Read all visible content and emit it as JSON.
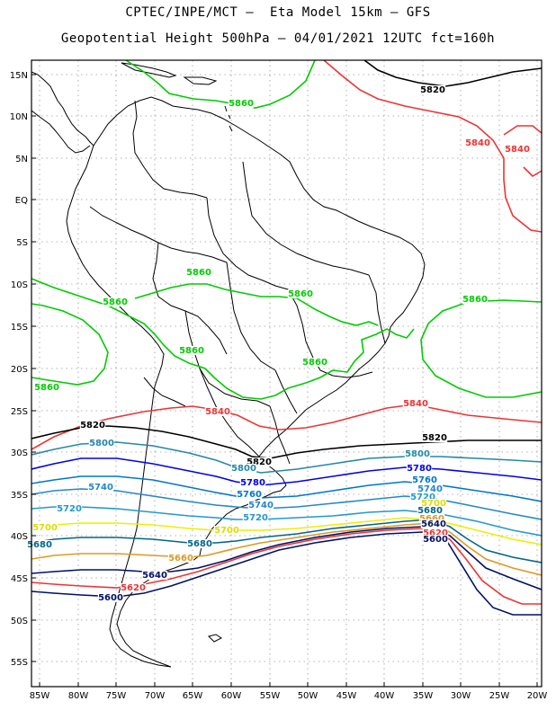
{
  "title": {
    "line1": "CPTEC/INPE/MCT –  Eta Model 15km – GFS",
    "line2": "Geopotential Height 500hPa – 04/01/2021 12UTC fct=160h"
  },
  "axes": {
    "lat_labels": [
      "15N",
      "10N",
      "5N",
      "EQ",
      "5S",
      "10S",
      "15S",
      "20S",
      "25S",
      "30S",
      "35S",
      "40S",
      "45S",
      "50S",
      "55S"
    ],
    "lon_labels": [
      "85W",
      "80W",
      "75W",
      "70W",
      "65W",
      "60W",
      "55W",
      "50W",
      "45W",
      "40W",
      "35W",
      "30W",
      "25W",
      "20W"
    ]
  },
  "colors": {
    "c5860": "#00cc00",
    "c5840": "#ee3333",
    "c5820": "#000000",
    "c5800": "#2288aa",
    "c5780": "#0000ee",
    "c5760": "#0077cc",
    "c5740": "#2288cc",
    "c5720": "#2299cc",
    "c5700": "#eeee00",
    "c5680": "#006688",
    "c5660": "#dd9922",
    "c5640": "#001166",
    "c5620": "#ee3333",
    "c5600": "#001166"
  },
  "contour_labels": [
    {
      "text": "5820",
      "color": "#000000"
    },
    {
      "text": "5860",
      "color": "#00cc00"
    },
    {
      "text": "5840",
      "color": "#ee3333"
    },
    {
      "text": "5840",
      "color": "#ee3333"
    },
    {
      "text": "5860",
      "color": "#00cc00"
    },
    {
      "text": "5860",
      "color": "#00cc00"
    },
    {
      "text": "5860",
      "color": "#00cc00"
    },
    {
      "text": "5860",
      "color": "#00cc00"
    },
    {
      "text": "5860",
      "color": "#00cc00"
    },
    {
      "text": "5860",
      "color": "#00cc00"
    },
    {
      "text": "5860",
      "color": "#00cc00"
    },
    {
      "text": "5840",
      "color": "#ee3333"
    },
    {
      "text": "5840",
      "color": "#ee3333"
    },
    {
      "text": "5820",
      "color": "#000000"
    },
    {
      "text": "5820",
      "color": "#000000"
    },
    {
      "text": "5820",
      "color": "#000000"
    },
    {
      "text": "5800",
      "color": "#2288aa"
    },
    {
      "text": "5800",
      "color": "#2288aa"
    },
    {
      "text": "5800",
      "color": "#2288aa"
    },
    {
      "text": "5780",
      "color": "#0000ee"
    },
    {
      "text": "5780",
      "color": "#0000ee"
    },
    {
      "text": "5760",
      "color": "#0077cc"
    },
    {
      "text": "5760",
      "color": "#0077cc"
    },
    {
      "text": "5740",
      "color": "#2288cc"
    },
    {
      "text": "5740",
      "color": "#2288cc"
    },
    {
      "text": "5740",
      "color": "#2288cc"
    },
    {
      "text": "5720",
      "color": "#2299cc"
    },
    {
      "text": "5720",
      "color": "#2299cc"
    },
    {
      "text": "5720",
      "color": "#2299cc"
    },
    {
      "text": "5700",
      "color": "#dddd00"
    },
    {
      "text": "5700",
      "color": "#dddd00"
    },
    {
      "text": "5700",
      "color": "#dddd00"
    },
    {
      "text": "5680",
      "color": "#006688"
    },
    {
      "text": "5680",
      "color": "#006688"
    },
    {
      "text": "5680",
      "color": "#006688"
    },
    {
      "text": "5660",
      "color": "#dd9922"
    },
    {
      "text": "5660",
      "color": "#dd9922"
    },
    {
      "text": "5640",
      "color": "#001166"
    },
    {
      "text": "5640",
      "color": "#001166"
    },
    {
      "text": "5620",
      "color": "#ee3333"
    },
    {
      "text": "5620",
      "color": "#ee3333"
    },
    {
      "text": "5600",
      "color": "#001166"
    },
    {
      "text": "5600",
      "color": "#001166"
    }
  ]
}
